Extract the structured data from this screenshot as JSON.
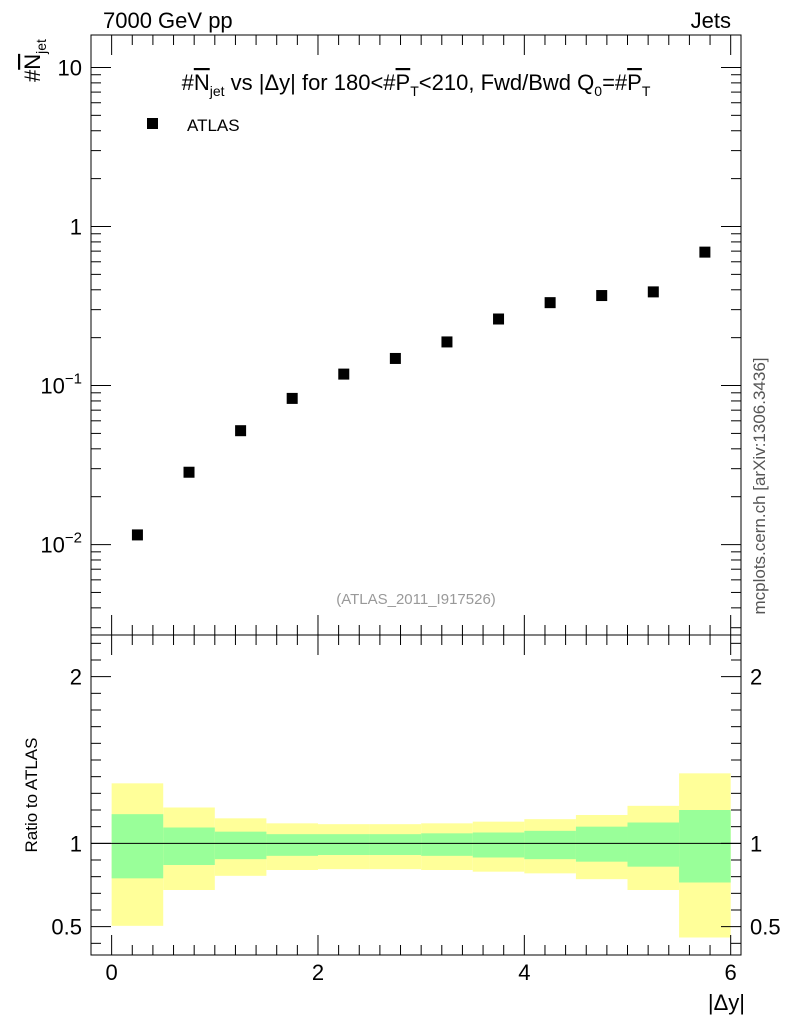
{
  "header": {
    "left": "7000 GeV pp",
    "right": "Jets"
  },
  "watermark": "mcplots.cern.ch [arXiv:1306.3436]",
  "chart_data": [
    {
      "type": "scatter",
      "title": "#N_jet vs |Δy| for 180<#P_T<210, Fwd/Bwd Q0=#P_T",
      "title_parts": {
        "pre": "#",
        "n": "N",
        "jet": "jet",
        "mid": " vs |Δy| for 180<#",
        "p": "P",
        "t": "T",
        "mid2": "<210, Fwd/Bwd Q",
        "zero": "0",
        "eq": "=#",
        "p2": "P",
        "t2": "T"
      },
      "ylabel": "#N_jet",
      "ylabel_parts": {
        "pre": "#",
        "n": "N",
        "jet": "jet"
      },
      "yscale": "log",
      "ylim": [
        0.0027,
        16
      ],
      "xlim": [
        -0.2,
        6.1
      ],
      "y_ticks": [
        {
          "value": 0.01,
          "base": "10",
          "exp": "−2"
        },
        {
          "value": 0.1,
          "base": "10",
          "exp": "−1"
        },
        {
          "value": 1,
          "base": "1",
          "exp": ""
        },
        {
          "value": 10,
          "base": "10",
          "exp": ""
        }
      ],
      "legend": {
        "label": "ATLAS",
        "position": "top-left"
      },
      "annotation": "(ATLAS_2011_I917526)",
      "series": [
        {
          "name": "ATLAS",
          "x": [
            0.25,
            0.75,
            1.25,
            1.75,
            2.25,
            2.75,
            3.25,
            3.75,
            4.25,
            4.75,
            5.25,
            5.75
          ],
          "y": [
            0.0115,
            0.0285,
            0.052,
            0.083,
            0.118,
            0.148,
            0.188,
            0.262,
            0.332,
            0.368,
            0.388,
            0.69
          ]
        }
      ]
    },
    {
      "type": "area",
      "ylabel": "Ratio to ATLAS",
      "xlabel": "|Δy|",
      "ylim": [
        0.33,
        2.25
      ],
      "xlim": [
        -0.2,
        6.1
      ],
      "x_ticks": [
        "0",
        "2",
        "4",
        "6"
      ],
      "y_ticks_left": [
        "0.5",
        "1",
        "2"
      ],
      "y_ticks_right": [
        "0.5",
        "1",
        "2"
      ],
      "reference_line": 1,
      "bins": [
        0,
        0.5,
        1,
        1.5,
        2,
        2.5,
        3,
        3.5,
        4,
        4.5,
        5,
        5.5,
        6
      ],
      "bands": [
        {
          "color": "#ffff99",
          "low": [
            0.505,
            0.72,
            0.805,
            0.84,
            0.845,
            0.845,
            0.84,
            0.83,
            0.82,
            0.785,
            0.72,
            0.435
          ],
          "high": [
            1.36,
            1.215,
            1.15,
            1.12,
            1.115,
            1.115,
            1.12,
            1.13,
            1.145,
            1.17,
            1.225,
            1.42
          ]
        },
        {
          "color": "#99ff99",
          "low": [
            0.79,
            0.87,
            0.905,
            0.925,
            0.93,
            0.93,
            0.925,
            0.915,
            0.905,
            0.89,
            0.86,
            0.765
          ],
          "high": [
            1.175,
            1.095,
            1.07,
            1.055,
            1.055,
            1.055,
            1.06,
            1.065,
            1.075,
            1.1,
            1.125,
            1.2
          ]
        }
      ]
    }
  ]
}
